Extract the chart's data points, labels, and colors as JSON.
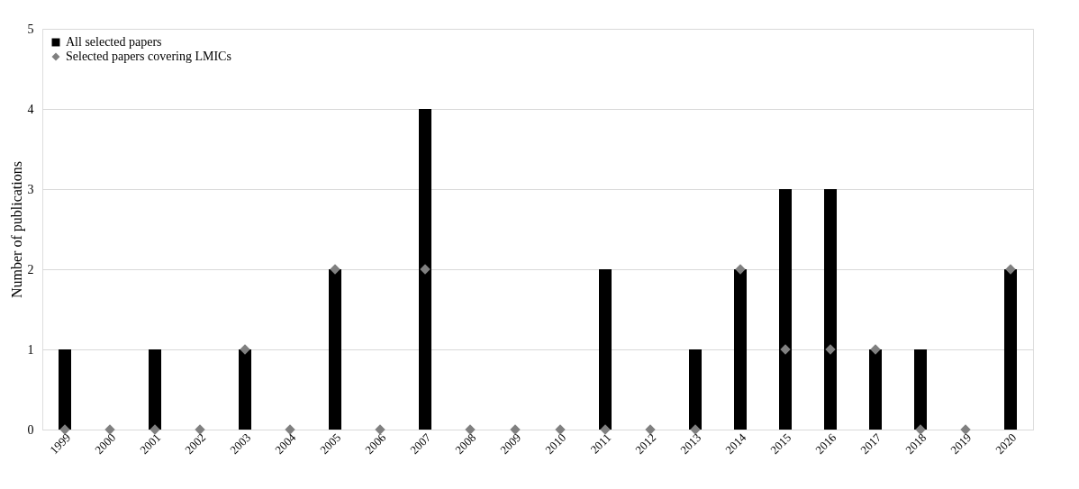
{
  "chart_data": {
    "type": "bar",
    "ylabel": "Number of publications",
    "categories": [
      "1999",
      "2000",
      "2001",
      "2002",
      "2003",
      "2004",
      "2005",
      "2006",
      "2007",
      "2008",
      "2009",
      "2010",
      "2011",
      "2012",
      "2013",
      "2014",
      "2015",
      "2016",
      "2017",
      "2018",
      "2019",
      "2020"
    ],
    "series": [
      {
        "name": "All selected papers",
        "color": "#000000",
        "values": [
          1,
          0,
          1,
          0,
          1,
          0,
          2,
          0,
          4,
          0,
          0,
          0,
          2,
          0,
          1,
          2,
          3,
          3,
          1,
          1,
          0,
          2
        ]
      },
      {
        "name": "Selected papers covering LMICs",
        "type": "scatter",
        "color": "#808080",
        "values": [
          0,
          0,
          0,
          0,
          1,
          0,
          2,
          0,
          2,
          0,
          0,
          0,
          0,
          0,
          0,
          2,
          1,
          1,
          1,
          0,
          0,
          2
        ]
      }
    ],
    "ylim": [
      0,
      5
    ],
    "yticks": [
      0,
      1,
      2,
      3,
      4,
      5
    ],
    "grid": "y",
    "legend": "top left",
    "marker": "diamond"
  }
}
